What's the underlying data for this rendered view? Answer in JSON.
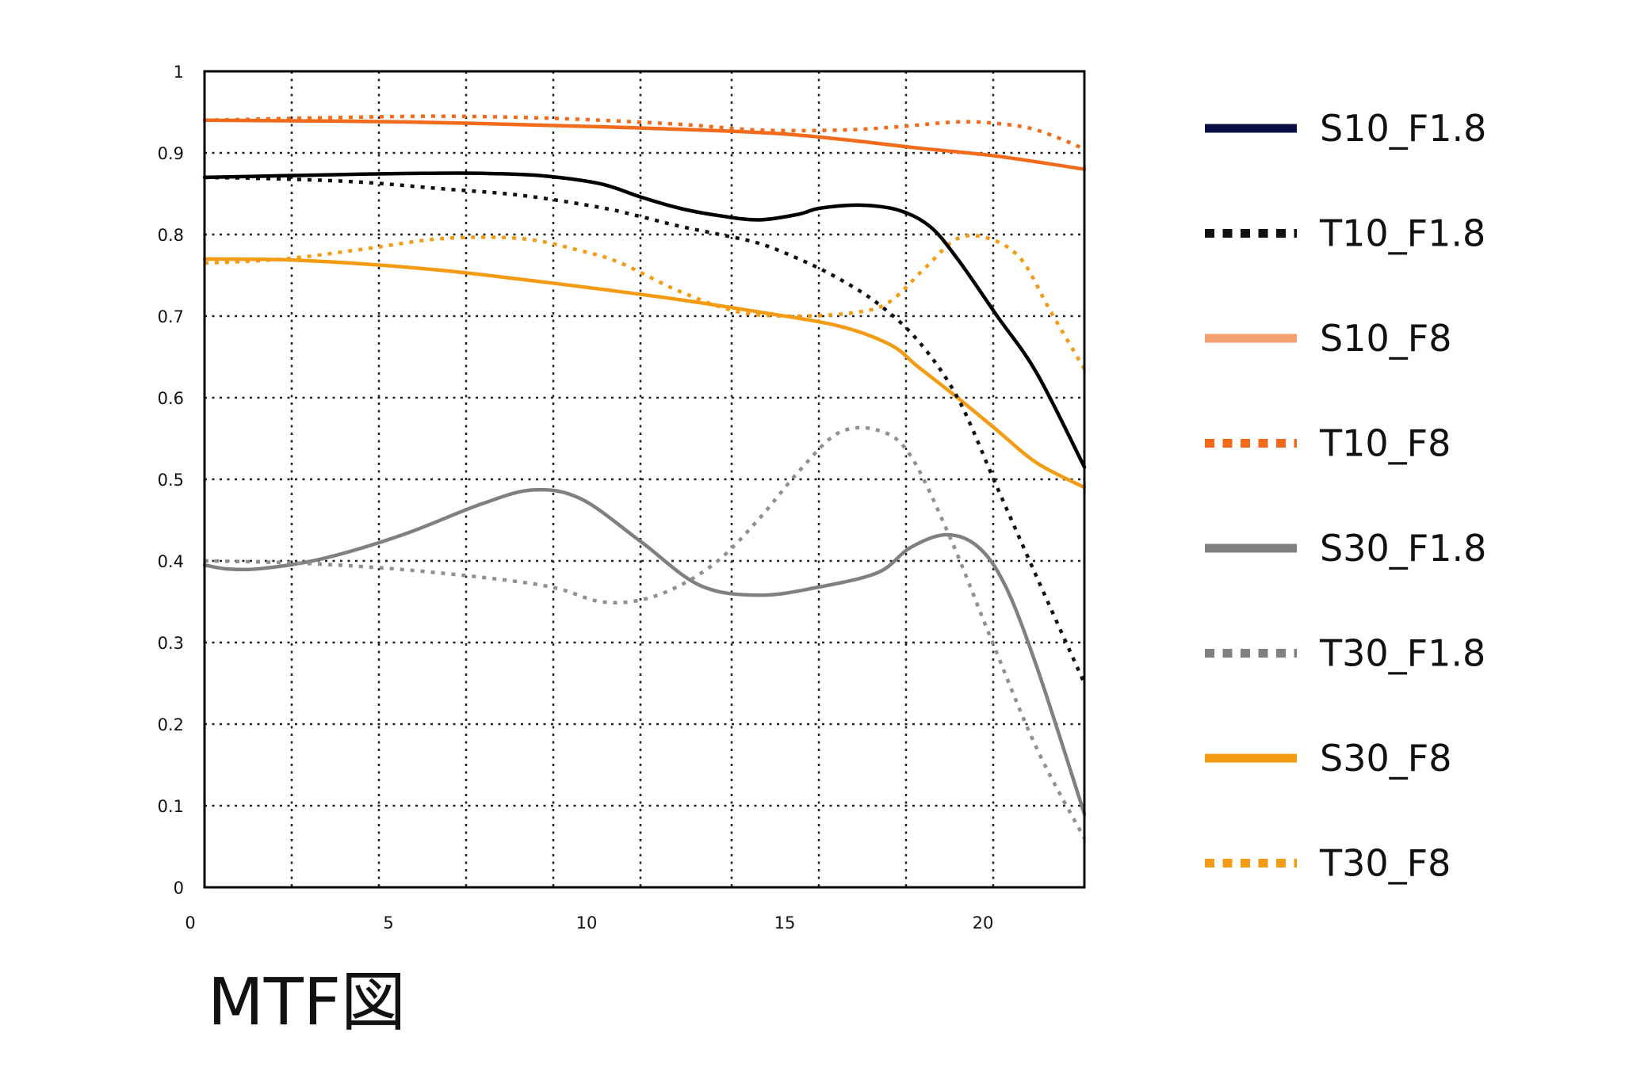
{
  "caption": "MTF図",
  "chart_data": {
    "type": "line",
    "title": "",
    "xlabel": "",
    "ylabel": "",
    "xlim": [
      0,
      22.2
    ],
    "ylim": [
      0,
      1
    ],
    "grid": true,
    "legend_position": "right",
    "x_ticks": [
      {
        "value": 0,
        "label": "0"
      },
      {
        "value": 5,
        "label": "5"
      },
      {
        "value": 10,
        "label": "10"
      },
      {
        "value": 15,
        "label": "15"
      },
      {
        "value": 20,
        "label": "20"
      }
    ],
    "y_ticks": [
      {
        "value": 0,
        "label": "0"
      },
      {
        "value": 0.1,
        "label": "0.1"
      },
      {
        "value": 0.2,
        "label": "0.2"
      },
      {
        "value": 0.3,
        "label": "0.3"
      },
      {
        "value": 0.4,
        "label": "0.4"
      },
      {
        "value": 0.5,
        "label": "0.5"
      },
      {
        "value": 0.6,
        "label": "0.6"
      },
      {
        "value": 0.7,
        "label": "0.7"
      },
      {
        "value": 0.8,
        "label": "0.8"
      },
      {
        "value": 0.9,
        "label": "0.9"
      },
      {
        "value": 1,
        "label": "1"
      }
    ],
    "x_gridlines": [
      2.2,
      4.4,
      6.6,
      8.8,
      11,
      13.3,
      15.5,
      17.7,
      19.9
    ],
    "y_gridlines": [
      0.1,
      0.2,
      0.3,
      0.4,
      0.5,
      0.6,
      0.7,
      0.8,
      0.9
    ],
    "series": [
      {
        "name": "S10_F1.8",
        "color": "#000000",
        "legend_color": "#0a1045",
        "style": "solid",
        "x": [
          0,
          2,
          4,
          5.5,
          7,
          8.5,
          10,
          11,
          12,
          13,
          14,
          15,
          15.5,
          16.5,
          17.5,
          18.3,
          19,
          20,
          21,
          22.2
        ],
        "y": [
          0.87,
          0.872,
          0.874,
          0.875,
          0.875,
          0.872,
          0.862,
          0.846,
          0.832,
          0.823,
          0.818,
          0.825,
          0.832,
          0.836,
          0.83,
          0.81,
          0.77,
          0.7,
          0.63,
          0.515
        ]
      },
      {
        "name": "T10_F1.8",
        "color": "#111111",
        "legend_color": "#111111",
        "style": "dotted",
        "x": [
          0,
          2,
          4,
          6,
          8,
          10,
          11,
          12,
          13,
          14,
          15,
          16,
          17,
          18,
          19,
          20,
          21,
          22.2
        ],
        "y": [
          0.87,
          0.868,
          0.864,
          0.856,
          0.848,
          0.833,
          0.822,
          0.81,
          0.8,
          0.789,
          0.77,
          0.746,
          0.715,
          0.67,
          0.6,
          0.49,
          0.38,
          0.25
        ]
      },
      {
        "name": "S10_F8",
        "color": "#f26a1b",
        "legend_color": "#f5a06f",
        "style": "solid",
        "x": [
          0,
          5,
          10,
          14,
          16,
          18,
          20,
          22.2
        ],
        "y": [
          0.94,
          0.938,
          0.932,
          0.925,
          0.917,
          0.906,
          0.896,
          0.88
        ]
      },
      {
        "name": "T10_F8",
        "color": "#f26a1b",
        "legend_color": "#f26a1b",
        "style": "dotted",
        "x": [
          0,
          3,
          6,
          9,
          12,
          14,
          16,
          17.5,
          19,
          20,
          21,
          22.2
        ],
        "y": [
          0.94,
          0.943,
          0.945,
          0.942,
          0.935,
          0.928,
          0.928,
          0.932,
          0.938,
          0.936,
          0.928,
          0.905
        ]
      },
      {
        "name": "S30_F1.8",
        "color": "#808080",
        "legend_color": "#808080",
        "style": "solid",
        "x": [
          0,
          0.6,
          1.5,
          3,
          5,
          7,
          8.3,
          9.5,
          11,
          12.5,
          14,
          15.5,
          17,
          17.8,
          18.7,
          19.5,
          20.2,
          21,
          22.2
        ],
        "y": [
          0.395,
          0.39,
          0.391,
          0.403,
          0.432,
          0.47,
          0.487,
          0.476,
          0.424,
          0.37,
          0.358,
          0.368,
          0.386,
          0.416,
          0.432,
          0.418,
          0.37,
          0.27,
          0.09
        ]
      },
      {
        "name": "T30_F1.8",
        "color": "#909090",
        "legend_color": "#808080",
        "style": "dotted",
        "x": [
          0,
          2,
          4,
          6,
          8,
          9,
          10,
          11,
          12,
          13,
          14,
          15,
          16,
          17,
          17.8,
          18.8,
          19.8,
          21,
          22.2
        ],
        "y": [
          0.4,
          0.398,
          0.393,
          0.385,
          0.374,
          0.365,
          0.35,
          0.352,
          0.37,
          0.402,
          0.452,
          0.51,
          0.557,
          0.56,
          0.53,
          0.43,
          0.31,
          0.17,
          0.06
        ]
      },
      {
        "name": "S30_F8",
        "color": "#f39b12",
        "legend_color": "#f39b12",
        "style": "solid",
        "x": [
          0,
          2,
          4,
          6,
          8,
          10,
          12,
          14,
          16,
          17.3,
          18,
          19,
          20,
          21,
          22.2
        ],
        "y": [
          0.77,
          0.769,
          0.764,
          0.756,
          0.745,
          0.733,
          0.72,
          0.705,
          0.688,
          0.665,
          0.638,
          0.6,
          0.56,
          0.52,
          0.49
        ]
      },
      {
        "name": "T30_F8",
        "color": "#f39b12",
        "legend_color": "#f39b12",
        "style": "dotted",
        "x": [
          0,
          2,
          4,
          6,
          8,
          9.5,
          10.5,
          12,
          13.5,
          15,
          16.5,
          17.3,
          18.2,
          19,
          19.8,
          20.6,
          21.3,
          22.2
        ],
        "y": [
          0.765,
          0.77,
          0.782,
          0.795,
          0.795,
          0.78,
          0.765,
          0.73,
          0.705,
          0.7,
          0.705,
          0.718,
          0.76,
          0.795,
          0.795,
          0.77,
          0.71,
          0.635
        ]
      }
    ]
  }
}
